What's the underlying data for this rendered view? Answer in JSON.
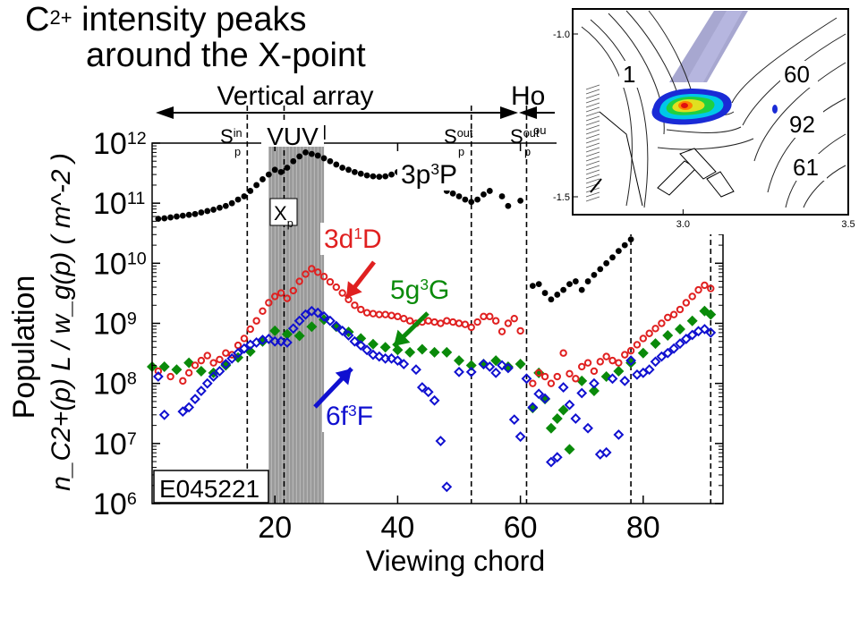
{
  "slide": {
    "title_base": "C",
    "title_sup": "2+",
    "title_rest": " intensity peaks",
    "title_line2": "around the X-point"
  },
  "colors": {
    "s3p3P": "#000000",
    "s3d1D": "#e02020",
    "s5g3G": "#0a8a0a",
    "s6f3F": "#1010d0",
    "vuv_band": "#9a9a9a",
    "inset_magenta": "#9898c8"
  },
  "chart_data": [
    {
      "type": "scatter",
      "title": "",
      "xlabel": "Viewing chord",
      "ylabel_line1": "Population",
      "ylabel_line2": "n_C2+(p) L / w_g(p) ( m^-2 )",
      "yscale": "log",
      "xlim": [
        0,
        93
      ],
      "ylim": [
        1000000.0,
        1000000000000.0
      ],
      "xticks": [
        20,
        40,
        60,
        80
      ],
      "xtick_labels": [
        "20",
        "40",
        "60",
        "80"
      ],
      "yticks": [
        1000000.0,
        10000000.0,
        100000000.0,
        1000000000.0,
        10000000000.0,
        100000000000.0,
        1000000000000.0
      ],
      "ytick_labels": [
        {
          "base": "10",
          "exp": "6"
        },
        {
          "base": "10",
          "exp": "7"
        },
        {
          "base": "10",
          "exp": "8"
        },
        {
          "base": "10",
          "exp": "9"
        },
        {
          "base": "10",
          "exp": "10"
        },
        {
          "base": "10",
          "exp": "11"
        },
        {
          "base": "10",
          "exp": "12"
        }
      ],
      "grid": false,
      "shot_label": "E045221",
      "header": {
        "vertical_array": "Vertical array",
        "horizontal_array_partial": "Ho",
        "vuv": "VUV",
        "spin": "S",
        "spin_sub": "p",
        "spin_in_sup": "in",
        "spout": "S",
        "spout_sub": "p",
        "spout_sup": "out",
        "spout2": "S",
        "spout2_sub": "p",
        "spout2_sup": "out",
        "spout3_partial": "ou",
        "xp": "X",
        "xp_sub": "p"
      },
      "dashed_lines_x": [
        15.5,
        21.5,
        52,
        61,
        78,
        91
      ],
      "vuv_band_x": [
        19,
        28
      ],
      "series": [
        {
          "name": "3p3P",
          "label_parts": [
            "3p",
            "3",
            "P"
          ],
          "marker": "filled-circle",
          "x": [
            1,
            2,
            3,
            4,
            5,
            6,
            7,
            8,
            9,
            10,
            11,
            12,
            13,
            14,
            15,
            16,
            17,
            18,
            19,
            20,
            21,
            22,
            23,
            24,
            25,
            26,
            27,
            28,
            29,
            30,
            31,
            32,
            33,
            34,
            35,
            36,
            37,
            38,
            39,
            40,
            41,
            42,
            43,
            44,
            45,
            46,
            47,
            48,
            49,
            50,
            51,
            52,
            53,
            54,
            55,
            57,
            58,
            60,
            62,
            63,
            64,
            65,
            66,
            67,
            68,
            69,
            70,
            71,
            72,
            73,
            74,
            75,
            76,
            77,
            78
          ],
          "y": [
            55000000000.0,
            56000000000.0,
            58000000000.0,
            60000000000.0,
            62000000000.0,
            64000000000.0,
            66000000000.0,
            70000000000.0,
            74000000000.0,
            78000000000.0,
            84000000000.0,
            90000000000.0,
            100000000000.0,
            115000000000.0,
            130000000000.0,
            160000000000.0,
            200000000000.0,
            250000000000.0,
            300000000000.0,
            360000000000.0,
            330000000000.0,
            390000000000.0,
            500000000000.0,
            600000000000.0,
            700000000000.0,
            660000000000.0,
            620000000000.0,
            560000000000.0,
            500000000000.0,
            440000000000.0,
            390000000000.0,
            360000000000.0,
            330000000000.0,
            310000000000.0,
            290000000000.0,
            280000000000.0,
            275000000000.0,
            280000000000.0,
            300000000000.0,
            330000000000.0,
            350000000000.0,
            330000000000.0,
            300000000000.0,
            270000000000.0,
            240000000000.0,
            210000000000.0,
            185000000000.0,
            160000000000.0,
            145000000000.0,
            130000000000.0,
            115000000000.0,
            105000000000.0,
            115000000000.0,
            140000000000.0,
            160000000000.0,
            130000000000.0,
            90000000000.0,
            110000000000.0,
            4200000000.0,
            4500000000.0,
            3200000000.0,
            2500000000.0,
            3000000000.0,
            3600000000.0,
            4500000000.0,
            5000000000.0,
            3600000000.0,
            5000000000.0,
            6400000000.0,
            8000000000.0,
            10000000000.0,
            12500000000.0,
            16000000000.0,
            20000000000.0,
            25000000000.0
          ]
        },
        {
          "name": "3d1D",
          "label_parts": [
            "3d",
            "1",
            "D"
          ],
          "marker": "open-circle",
          "x": [
            1,
            3,
            5,
            6,
            7,
            8,
            9,
            10,
            11,
            12,
            13,
            14,
            15,
            16,
            17,
            18,
            19,
            20,
            21,
            22,
            23,
            24,
            25,
            26,
            27,
            28,
            29,
            30,
            31,
            32,
            33,
            34,
            35,
            36,
            37,
            38,
            39,
            40,
            41,
            42,
            43,
            44,
            45,
            46,
            47,
            48,
            49,
            50,
            51,
            52,
            53,
            54,
            55,
            56,
            57,
            58,
            59,
            60,
            62,
            63,
            64,
            65,
            66,
            67,
            68,
            69,
            70,
            71,
            72,
            73,
            74,
            75,
            76,
            77,
            78,
            79,
            80,
            81,
            82,
            83,
            84,
            85,
            86,
            87,
            88,
            89,
            90,
            91
          ],
          "y": [
            160000000.0,
            130000000.0,
            110000000.0,
            150000000.0,
            200000000.0,
            240000000.0,
            290000000.0,
            220000000.0,
            250000000.0,
            320000000.0,
            300000000.0,
            430000000.0,
            560000000.0,
            800000000.0,
            1100000000.0,
            1600000000.0,
            2200000000.0,
            2800000000.0,
            3200000000.0,
            2600000000.0,
            3500000000.0,
            5000000000.0,
            6600000000.0,
            8100000000.0,
            7100000000.0,
            6000000000.0,
            4900000000.0,
            4000000000.0,
            3200000000.0,
            2500000000.0,
            2000000000.0,
            1700000000.0,
            1500000000.0,
            1450000000.0,
            1400000000.0,
            1400000000.0,
            1350000000.0,
            1300000000.0,
            1200000000.0,
            1100000000.0,
            1000000000.0,
            1050000000.0,
            1100000000.0,
            1050000000.0,
            1000000000.0,
            1100000000.0,
            1050000000.0,
            1000000000.0,
            960000000.0,
            860000000.0,
            1050000000.0,
            1300000000.0,
            1300000000.0,
            1100000000.0,
            730000000.0,
            1000000000.0,
            1200000000.0,
            750000000.0,
            100000000.0,
            150000000.0,
            130000000.0,
            100000000.0,
            130000000.0,
            320000000.0,
            145000000.0,
            120000000.0,
            190000000.0,
            220000000.0,
            160000000.0,
            230000000.0,
            280000000.0,
            240000000.0,
            220000000.0,
            300000000.0,
            350000000.0,
            440000000.0,
            560000000.0,
            680000000.0,
            820000000.0,
            1000000000.0,
            1250000000.0,
            1400000000.0,
            1700000000.0,
            2200000000.0,
            2800000000.0,
            3600000000.0,
            4300000000.0,
            3800000000.0
          ]
        },
        {
          "name": "5g3G",
          "label_parts": [
            "5g",
            "3",
            "G"
          ],
          "marker": "filled-diamond",
          "x": [
            0,
            2,
            4,
            6,
            8,
            10,
            12,
            14,
            16,
            18,
            20,
            22,
            24,
            26,
            28,
            30,
            32,
            34,
            36,
            38,
            40,
            42,
            44,
            46,
            48,
            50,
            52,
            54,
            56,
            58,
            60,
            62,
            63,
            64,
            65,
            66,
            67,
            68,
            70,
            72,
            74,
            76,
            78,
            80,
            82,
            84,
            86,
            88,
            90,
            91
          ],
          "y": [
            190000000.0,
            190000000.0,
            170000000.0,
            220000000.0,
            160000000.0,
            150000000.0,
            200000000.0,
            270000000.0,
            340000000.0,
            500000000.0,
            750000000.0,
            660000000.0,
            620000000.0,
            880000000.0,
            1150000000.0,
            880000000.0,
            720000000.0,
            560000000.0,
            450000000.0,
            400000000.0,
            360000000.0,
            330000000.0,
            370000000.0,
            330000000.0,
            330000000.0,
            240000000.0,
            200000000.0,
            210000000.0,
            240000000.0,
            190000000.0,
            210000000.0,
            39000000.0,
            150000000.0,
            55000000.0,
            18000000.0,
            26000000.0,
            36000000.0,
            8000000.0,
            110000000.0,
            75000000.0,
            130000000.0,
            160000000.0,
            220000000.0,
            320000000.0,
            460000000.0,
            630000000.0,
            800000000.0,
            1100000000.0,
            1600000000.0,
            1400000000.0
          ]
        },
        {
          "name": "6f3F",
          "label_parts": [
            "6f",
            "3",
            "F"
          ],
          "marker": "open-diamond",
          "x": [
            1,
            2,
            5,
            6,
            7,
            8,
            9,
            10,
            11,
            12,
            13,
            14,
            15,
            16,
            17,
            18,
            19,
            20,
            21,
            22,
            23,
            24,
            25,
            26,
            27,
            28,
            29,
            30,
            31,
            32,
            33,
            34,
            35,
            36,
            37,
            38,
            39,
            40,
            41,
            43,
            44,
            45,
            46,
            47,
            48,
            50,
            52,
            54,
            55,
            56,
            57,
            58,
            59,
            60,
            61,
            62,
            63,
            64,
            65,
            66,
            67,
            68,
            69,
            70,
            71,
            72,
            73,
            74,
            75,
            76,
            77,
            78,
            79,
            80,
            81,
            82,
            83,
            84,
            85,
            86,
            87,
            88,
            89,
            90,
            91
          ],
          "y": [
            130000000.0,
            30000000.0,
            34000000.0,
            40000000.0,
            55000000.0,
            75000000.0,
            100000000.0,
            130000000.0,
            160000000.0,
            210000000.0,
            260000000.0,
            320000000.0,
            380000000.0,
            440000000.0,
            480000000.0,
            530000000.0,
            550000000.0,
            500000000.0,
            500000000.0,
            480000000.0,
            820000000.0,
            1100000000.0,
            1400000000.0,
            1600000000.0,
            1500000000.0,
            1300000000.0,
            1100000000.0,
            900000000.0,
            750000000.0,
            630000000.0,
            500000000.0,
            430000000.0,
            360000000.0,
            300000000.0,
            280000000.0,
            260000000.0,
            260000000.0,
            240000000.0,
            210000000.0,
            170000000.0,
            86000000.0,
            72000000.0,
            52000000.0,
            11000000.0,
            1900000.0,
            155000000.0,
            155000000.0,
            210000000.0,
            190000000.0,
            150000000.0,
            200000000.0,
            180000000.0,
            25000000.0,
            13000000.0,
            120000000.0,
            40000000.0,
            67000000.0,
            56000000.0,
            4900000.0,
            5900000.0,
            86000000.0,
            44000000.0,
            26000000.0,
            69000000.0,
            18000000.0,
            100000000.0,
            6600000.0,
            7100000.0,
            120000000.0,
            14000000.0,
            110000000.0,
            240000000.0,
            140000000.0,
            150000000.0,
            170000000.0,
            230000000.0,
            280000000.0,
            320000000.0,
            380000000.0,
            460000000.0,
            550000000.0,
            640000000.0,
            740000000.0,
            800000000.0,
            700000000.0
          ]
        }
      ],
      "annotations": {
        "s3d1D": {
          "parts": [
            "3d",
            "1",
            "D"
          ],
          "color": "#e02020"
        },
        "s5g3G": {
          "parts": [
            "5g",
            "3",
            "G"
          ],
          "color": "#0a8a0a"
        },
        "s6f3F": {
          "parts": [
            "6f",
            "3",
            "F"
          ],
          "color": "#1010d0"
        },
        "s3p3P": {
          "parts": [
            "3p",
            "3",
            "P"
          ],
          "color": "#000000"
        }
      }
    },
    {
      "type": "contour",
      "xtick_labels": [
        "3.0",
        "3.5"
      ],
      "ytick_labels": [
        "-1.0",
        "-1.5"
      ],
      "xticks": [
        3.0,
        3.5
      ],
      "yticks": [
        -1.0,
        -1.5
      ],
      "chord_labels": [
        "1",
        "60",
        "92",
        "61"
      ]
    }
  ]
}
